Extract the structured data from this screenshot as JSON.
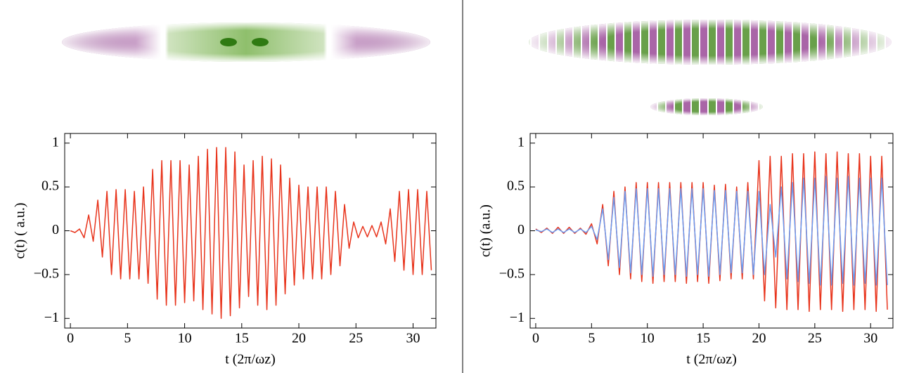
{
  "chart_data": [
    {
      "type": "line",
      "x_label": "t (2π/ωz)",
      "y_label": "c(t) ( a.u.)",
      "xlim": [
        -0.5,
        32
      ],
      "ylim": [
        -1.11,
        1.11
      ],
      "xticks": [
        0,
        5,
        10,
        15,
        20,
        25,
        30
      ],
      "yticks": [
        {
          "value": -1,
          "label": "−1"
        },
        {
          "value": -0.5,
          "label": "−0.5"
        },
        0,
        0.5,
        1
      ],
      "x": [
        0,
        0.4,
        0.8,
        1.2,
        1.6,
        2,
        2.4,
        2.8,
        3.2,
        3.6,
        4,
        4.4,
        4.8,
        5.2,
        5.6,
        6,
        6.4,
        6.8,
        7.2,
        7.6,
        8,
        8.4,
        8.8,
        9.2,
        9.6,
        10,
        10.4,
        10.8,
        11.2,
        11.6,
        12,
        12.4,
        12.8,
        13.2,
        13.6,
        14,
        14.4,
        14.8,
        15.2,
        15.6,
        16,
        16.4,
        16.8,
        17.2,
        17.6,
        18,
        18.4,
        18.8,
        19.2,
        19.6,
        20,
        20.4,
        20.8,
        21.2,
        21.6,
        22,
        22.4,
        22.8,
        23.2,
        23.6,
        24,
        24.4,
        24.8,
        25.2,
        25.6,
        26,
        26.4,
        26.8,
        27.2,
        27.6,
        28,
        28.4,
        28.8,
        29.2,
        29.6,
        30,
        30.4,
        30.8,
        31.2,
        31.6
      ],
      "series": [
        {
          "color": "#e8341c",
          "values": [
            0,
            -0.02,
            0.02,
            -0.08,
            0.18,
            -0.12,
            0.35,
            -0.3,
            0.45,
            -0.5,
            0.47,
            -0.55,
            0.47,
            -0.55,
            0.45,
            -0.55,
            0.5,
            -0.6,
            0.7,
            -0.78,
            0.8,
            -0.85,
            0.8,
            -0.85,
            0.8,
            -0.82,
            0.75,
            -0.8,
            0.85,
            -0.9,
            0.93,
            -0.95,
            0.95,
            -1.0,
            0.95,
            -0.97,
            0.9,
            -0.88,
            0.75,
            -0.75,
            0.8,
            -0.85,
            0.85,
            -0.9,
            0.82,
            -0.85,
            0.75,
            -0.72,
            0.6,
            -0.62,
            0.52,
            -0.55,
            0.5,
            -0.55,
            0.5,
            -0.55,
            0.5,
            -0.5,
            0.45,
            -0.4,
            0.3,
            -0.2,
            0.1,
            -0.08,
            0.05,
            -0.07,
            0.06,
            -0.07,
            0.1,
            -0.15,
            0.25,
            -0.35,
            0.45,
            -0.45,
            0.47,
            -0.5,
            0.47,
            -0.5,
            0.45,
            -0.45
          ]
        }
      ]
    },
    {
      "type": "line",
      "x_label": "t (2π/ωz)",
      "y_label": "c(t) (a.u.)",
      "xlim": [
        -0.5,
        32
      ],
      "ylim": [
        -1.11,
        1.11
      ],
      "xticks": [
        0,
        5,
        10,
        15,
        20,
        25,
        30
      ],
      "yticks": [
        {
          "value": -1,
          "label": "−1"
        },
        {
          "value": -0.5,
          "label": "−0.5"
        },
        0,
        0.5,
        1
      ],
      "x": [
        0,
        0.5,
        1,
        1.5,
        2,
        2.5,
        3,
        3.5,
        4,
        4.5,
        5,
        5.5,
        6,
        6.5,
        7,
        7.5,
        8,
        8.5,
        9,
        9.5,
        10,
        10.5,
        11,
        11.5,
        12,
        12.5,
        13,
        13.5,
        14,
        14.5,
        15,
        15.5,
        16,
        16.5,
        17,
        17.5,
        18,
        18.5,
        19,
        19.5,
        20,
        20.5,
        21,
        21.5,
        22,
        22.5,
        23,
        23.5,
        24,
        24.5,
        25,
        25.5,
        26,
        26.5,
        27,
        27.5,
        28,
        28.5,
        29,
        29.5,
        30,
        30.5,
        31,
        31.5
      ],
      "series": [
        {
          "color": "#e8341c",
          "values": [
            0.02,
            -0.02,
            0.03,
            -0.03,
            0.04,
            -0.03,
            0.04,
            -0.03,
            0.03,
            -0.04,
            0.08,
            -0.15,
            0.3,
            -0.4,
            0.45,
            -0.5,
            0.5,
            -0.55,
            0.55,
            -0.58,
            0.55,
            -0.6,
            0.55,
            -0.58,
            0.55,
            -0.58,
            0.55,
            -0.6,
            0.55,
            -0.58,
            0.55,
            -0.6,
            0.52,
            -0.57,
            0.53,
            -0.55,
            0.5,
            -0.55,
            0.55,
            -0.55,
            0.8,
            -0.8,
            0.85,
            -0.88,
            0.85,
            -0.9,
            0.88,
            -0.9,
            0.88,
            -0.92,
            0.9,
            -0.9,
            0.88,
            -0.9,
            0.9,
            -0.92,
            0.88,
            -0.9,
            0.88,
            -0.9,
            0.85,
            -0.92,
            0.85,
            -0.9
          ]
        },
        {
          "color": "#6a9af0",
          "values": [
            0.01,
            -0.01,
            0.02,
            -0.02,
            0.02,
            -0.02,
            0.02,
            -0.02,
            0.02,
            -0.02,
            0.05,
            -0.1,
            0.25,
            -0.33,
            0.38,
            -0.42,
            0.45,
            -0.48,
            0.48,
            -0.5,
            0.48,
            -0.52,
            0.48,
            -0.5,
            0.48,
            -0.5,
            0.48,
            -0.52,
            0.48,
            -0.5,
            0.48,
            -0.52,
            0.46,
            -0.5,
            0.46,
            -0.48,
            0.45,
            -0.48,
            0.45,
            -0.5,
            0.45,
            -0.5,
            0.3,
            -0.3,
            0.5,
            -0.55,
            0.55,
            -0.58,
            0.6,
            -0.6,
            0.6,
            -0.62,
            0.62,
            -0.62,
            0.6,
            -0.6,
            0.62,
            -0.62,
            0.6,
            -0.6,
            0.6,
            -0.62,
            0.6,
            -0.62
          ]
        }
      ]
    }
  ]
}
